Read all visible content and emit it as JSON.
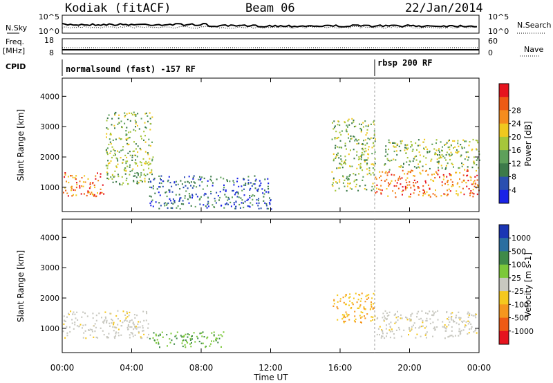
{
  "header": {
    "radar": "Kodiak (fitACF)",
    "beam": "Beam 06",
    "date": "22/Jan/2014"
  },
  "top_panels": {
    "nsky_label": "N.Sky",
    "nsky_ticks": [
      "10^5",
      "10^0"
    ],
    "nsearch_label": "N.Search",
    "nsearch_ticks": [
      "10^5",
      "10^0"
    ],
    "freq_label": "Freq.",
    "freq_unit": "[MHz]",
    "freq_ticks": [
      "18",
      "8"
    ],
    "nave_label": "Nave",
    "nave_ticks": [
      "60",
      "0"
    ],
    "cpid_label": "CPID",
    "cpid_segments": [
      {
        "name": "normalsound (fast) -157 RF",
        "start_hour": 0.0
      },
      {
        "name": "rbsp 200 RF",
        "start_hour": 18.0
      }
    ]
  },
  "chart_data": [
    {
      "type": "heatmap",
      "parameter": "power",
      "xlabel": "",
      "ylabel": "Slant Range [km]",
      "ylim": [
        200,
        4600
      ],
      "y_ticks": [
        1000,
        2000,
        3000,
        4000
      ],
      "colorbar": {
        "label": "Power [dB]",
        "ticks": [
          "4",
          "8",
          "12",
          "16",
          "20",
          "24",
          "28"
        ],
        "colors": [
          "#1a23e6",
          "#2a4fb0",
          "#3c7a4a",
          "#5ea05a",
          "#a6c63a",
          "#f0c81e",
          "#f58c1e",
          "#ee5a14",
          "#e6141e"
        ]
      },
      "regions": [
        {
          "x": [
            0.0,
            2.5
          ],
          "y": [
            700,
            1500
          ],
          "level": "high"
        },
        {
          "x": [
            2.5,
            5.2
          ],
          "y": [
            1100,
            3500
          ],
          "level": "mid"
        },
        {
          "x": [
            5.0,
            12.0
          ],
          "y": [
            300,
            1400
          ],
          "level": "low"
        },
        {
          "x": [
            15.5,
            18.0
          ],
          "y": [
            900,
            3300
          ],
          "level": "mid"
        },
        {
          "x": [
            18.0,
            24.0
          ],
          "y": [
            700,
            1600
          ],
          "level": "high"
        },
        {
          "x": [
            18.5,
            24.0
          ],
          "y": [
            1600,
            2600
          ],
          "level": "mid"
        }
      ]
    },
    {
      "type": "heatmap",
      "parameter": "velocity",
      "xlabel": "Time UT",
      "ylabel": "Slant Range [km]",
      "ylim": [
        200,
        4600
      ],
      "y_ticks": [
        1000,
        2000,
        3000,
        4000
      ],
      "x_ticks": [
        "00:00",
        "04:00",
        "08:00",
        "12:00",
        "16:00",
        "20:00",
        "00:00"
      ],
      "colorbar": {
        "label": "Velocity [m s-1]",
        "ticks": [
          "1000",
          "500",
          "100",
          "25",
          "-25",
          "-100",
          "-500",
          "-1000"
        ],
        "colors": [
          "#1a35b4",
          "#2a6ea0",
          "#3f8a48",
          "#7cc83a",
          "#c8c8c0",
          "#f5c81e",
          "#f5961e",
          "#ee5a14",
          "#e6141e"
        ]
      },
      "regions": [
        {
          "x": [
            0.0,
            5.0
          ],
          "y": [
            700,
            1600
          ],
          "level": "ground"
        },
        {
          "x": [
            5.0,
            9.5
          ],
          "y": [
            400,
            900
          ],
          "level": "positive"
        },
        {
          "x": [
            15.5,
            18.0
          ],
          "y": [
            1200,
            2200
          ],
          "level": "negative"
        },
        {
          "x": [
            18.0,
            24.0
          ],
          "y": [
            700,
            1600
          ],
          "level": "ground"
        }
      ]
    }
  ]
}
